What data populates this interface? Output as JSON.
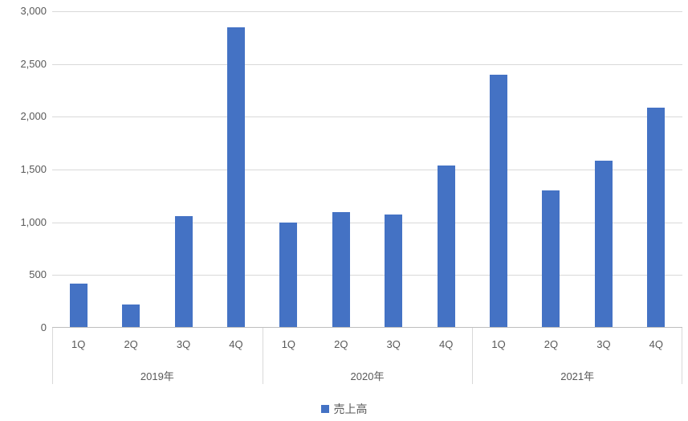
{
  "chart_data": {
    "type": "bar",
    "title": "",
    "series_name": "売上高",
    "grid": true,
    "legend_position": "bottom",
    "y_axis": {
      "min": 0,
      "max": 3000,
      "step": 500,
      "tick_labels": [
        "0",
        "500",
        "1,000",
        "1,500",
        "2,000",
        "2,500",
        "3,000"
      ]
    },
    "groups": [
      {
        "label": "2019年",
        "categories": [
          "1Q",
          "2Q",
          "3Q",
          "4Q"
        ],
        "values": [
          420,
          220,
          1060,
          2850
        ]
      },
      {
        "label": "2020年",
        "categories": [
          "1Q",
          "2Q",
          "3Q",
          "4Q"
        ],
        "values": [
          1000,
          1100,
          1070,
          1540
        ]
      },
      {
        "label": "2021年",
        "categories": [
          "1Q",
          "2Q",
          "3Q",
          "4Q"
        ],
        "values": [
          2400,
          1300,
          1580,
          2090
        ]
      }
    ]
  },
  "colors": {
    "bar": "#4472C4",
    "gridline": "#D9D9D9",
    "axis_line": "#BFBFBF",
    "text": "#595959"
  }
}
